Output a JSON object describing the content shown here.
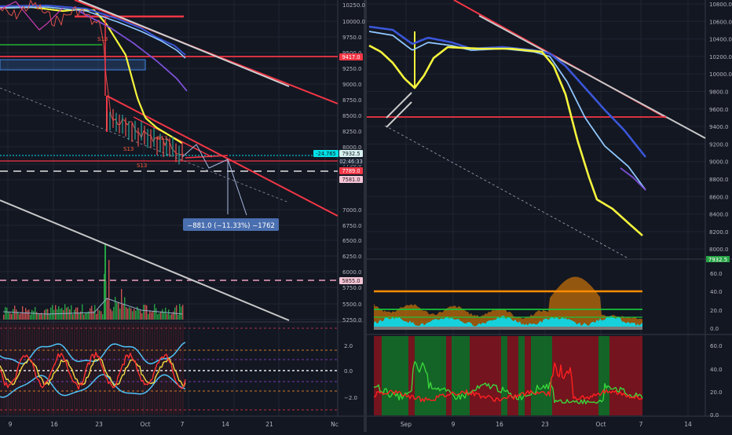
{
  "colors": {
    "bg": "#131722",
    "grid": "#1f2433",
    "axis_text": "#b2b5be",
    "separator": "#363a45",
    "red": "#f23645",
    "yellow": "#f5f53c",
    "blue": "#3a56d9",
    "lightblue": "#8fc7ff",
    "purple": "#7b4fd6",
    "white_line": "#c8c8c8",
    "cyan": "#00e5ff",
    "orange": "#ff8c00",
    "green": "#19c23a",
    "vol_green": "#25a244",
    "price_red": "#ff5a5a"
  },
  "chart_data": [
    {
      "type": "line",
      "name": "left-price-chart",
      "ylim": [
        5250,
        10250
      ],
      "yticks": [
        "10250.0",
        "10000.0",
        "9750.0",
        "9500.0",
        "9250.0",
        "9000.0",
        "8750.0",
        "8500.0",
        "8250.0",
        "8000.0",
        "7750.0",
        "7500.0",
        "7000.0",
        "6750.0",
        "6500.0",
        "6250.0",
        "6000.0",
        "5750.0",
        "5500.0",
        "5250.0"
      ],
      "price_labels": [
        {
          "text": "9417.0",
          "style": "red-fill"
        },
        {
          "text": "-24.765",
          "style": "cyan-fill"
        },
        {
          "text": "7932.5",
          "style": "light-fill"
        },
        {
          "text": "02:46:33",
          "style": "dark"
        },
        {
          "text": "7789.0",
          "style": "red-fill"
        },
        {
          "text": "7581.0",
          "style": "pink-fill"
        },
        {
          "text": "5855.0",
          "style": "pink-fill"
        }
      ],
      "annotations": [
        "S13",
        "S13",
        "S13",
        "S13"
      ],
      "measure_label": "−881.0 (−11.33%) −1762"
    },
    {
      "type": "line",
      "name": "left-oscillator",
      "yticks": [
        "2.0",
        "0.0",
        "−2.0"
      ]
    },
    {
      "type": "line",
      "name": "right-moving-averages",
      "ylim": [
        8000,
        10800
      ],
      "yticks": [
        "10800.0",
        "10600.0",
        "10400.0",
        "10200.0",
        "10000.0",
        "9800.0",
        "9600.0",
        "9400.0",
        "9200.0",
        "9000.0",
        "8800.0",
        "8600.0",
        "8400.0",
        "8200.0",
        "8000.0"
      ],
      "last_label": "7932.5"
    },
    {
      "type": "area",
      "name": "right-indicator-1",
      "yticks": [
        "60.0",
        "40.0",
        "20.0",
        "0.0"
      ]
    },
    {
      "type": "line",
      "name": "right-indicator-2",
      "yticks": [
        "60.0",
        "40.0",
        "20.0",
        "0.0"
      ]
    }
  ],
  "xaxis_left": [
    "9",
    "16",
    "23",
    "Oct",
    "7",
    "14",
    "21",
    "Nc"
  ],
  "xaxis_right": [
    "Sep",
    "9",
    "16",
    "23",
    "Oct",
    "7",
    "14"
  ]
}
